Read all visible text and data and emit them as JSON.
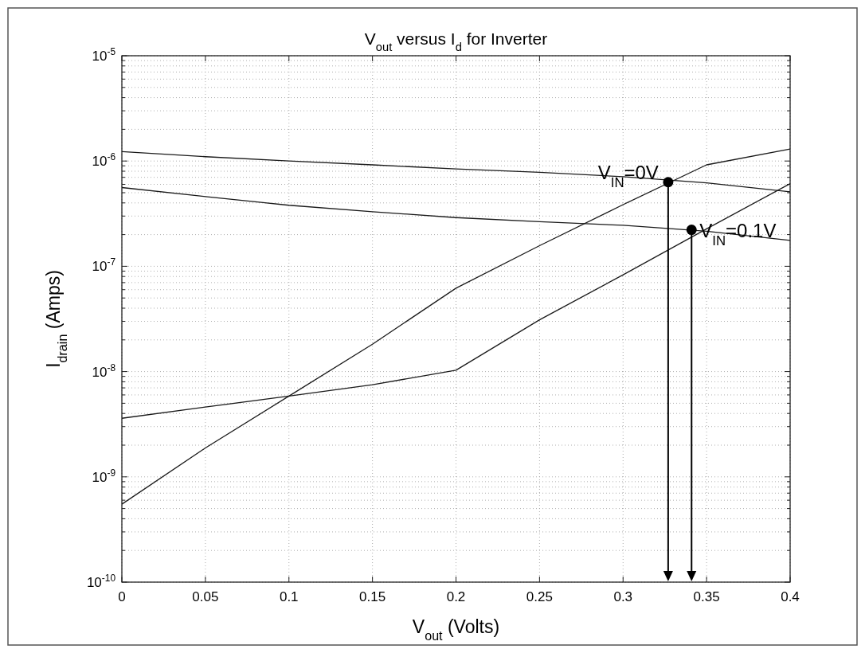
{
  "chart_data": {
    "type": "line",
    "title": "V$_{out}$ versus I$_{d}$ for Inverter",
    "xlabel": "V$_{out}$ (Volts)",
    "ylabel": "I$_{drain}$ (Amps)",
    "x": [
      0,
      0.05,
      0.1,
      0.15,
      0.2,
      0.25,
      0.3,
      0.35,
      0.4
    ],
    "series": [
      {
        "color": "#1a1a1a",
        "values": [
          1.23e-06,
          1.1e-06,
          1e-06,
          9.2e-07,
          8.4e-07,
          7.8e-07,
          7.1e-07,
          6.2e-07,
          5.1e-07
        ]
      },
      {
        "color": "#1a1a1a",
        "values": [
          5.6e-07,
          4.6e-07,
          3.8e-07,
          3.3e-07,
          2.9e-07,
          2.65e-07,
          2.45e-07,
          2.15e-07,
          1.76e-07
        ]
      },
      {
        "color": "#1a1a1a",
        "values": [
          5.5e-10,
          1.88e-09,
          5.85e-09,
          1.82e-08,
          6.2e-08,
          1.57e-07,
          3.85e-07,
          9.2e-07,
          1.3e-06
        ]
      },
      {
        "color": "#1a1a1a",
        "values": [
          3.6e-09,
          4.6e-09,
          5.85e-09,
          7.5e-09,
          1.03e-08,
          3.1e-08,
          8.3e-08,
          2.27e-07,
          6.1e-07
        ]
      },
      {
        "type": "scatter",
        "marker": "circle",
        "color": "#000000",
        "x": [
          0.327,
          0.341
        ],
        "values": [
          6.3e-07,
          2.22e-07
        ]
      }
    ],
    "annotations": [
      {
        "text": "V$_{IN}$=0V",
        "x": 0.327,
        "y": 6.3e-07
      },
      {
        "text": "V$_{IN}$=0.1V",
        "x": 0.341,
        "y": 2.22e-07
      }
    ],
    "xlim": [
      0,
      0.4
    ],
    "xticks": [
      0,
      0.05,
      0.1,
      0.15,
      0.2,
      0.25,
      0.3,
      0.35,
      0.4
    ],
    "ylim": [
      1e-10,
      1e-05
    ],
    "yticks": [
      {
        "value": 1e-10,
        "label": "10$^{-10}$"
      },
      {
        "value": 1e-09,
        "label": "10$^{-9}$"
      },
      {
        "value": 1e-08,
        "label": "10$^{-8}$"
      },
      {
        "value": 1e-07,
        "label": "10$^{-7}$"
      },
      {
        "value": 1e-06,
        "label": "10$^{-6}$"
      },
      {
        "value": 1e-05,
        "label": "10$^{-5}$"
      }
    ],
    "log": "y",
    "grid": true,
    "marker": "none",
    "line_style": "solid"
  }
}
